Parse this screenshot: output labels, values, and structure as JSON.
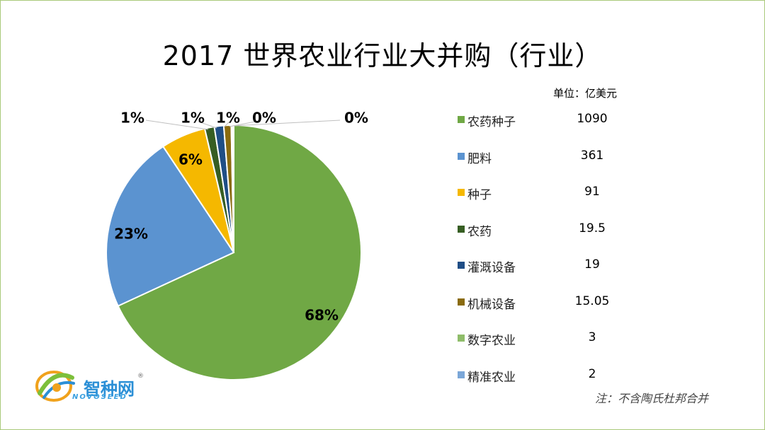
{
  "title": "2017 世界农业行业大并购（行业）",
  "unit_label": "单位：亿美元",
  "note": "注：不含陶氏杜邦合并",
  "logo": {
    "name": "智种网",
    "sub": "NOVOSEED",
    "registered": "®"
  },
  "chart_data": {
    "type": "pie",
    "title": "2017 世界农业行业大并购（行业）",
    "unit": "亿美元",
    "categories": [
      "农药种子",
      "肥料",
      "种子",
      "农药",
      "灌溉设备",
      "机械设备",
      "数字农业",
      "精准农业"
    ],
    "values": [
      1090,
      361,
      91,
      19.5,
      19,
      15.05,
      3,
      2
    ],
    "display_values": [
      "1090",
      "361",
      "91",
      "19.5",
      "19",
      "15.05",
      "3",
      "2"
    ],
    "percent_labels": [
      "68%",
      "23%",
      "6%",
      "1%",
      "1%",
      "1%",
      "0%",
      "0%"
    ],
    "colors": [
      "#70a845",
      "#5b93d0",
      "#f5b800",
      "#375e23",
      "#1f4e86",
      "#8a6b0f",
      "#8fbd6a",
      "#7ba7d8"
    ],
    "legend_position": "right"
  }
}
